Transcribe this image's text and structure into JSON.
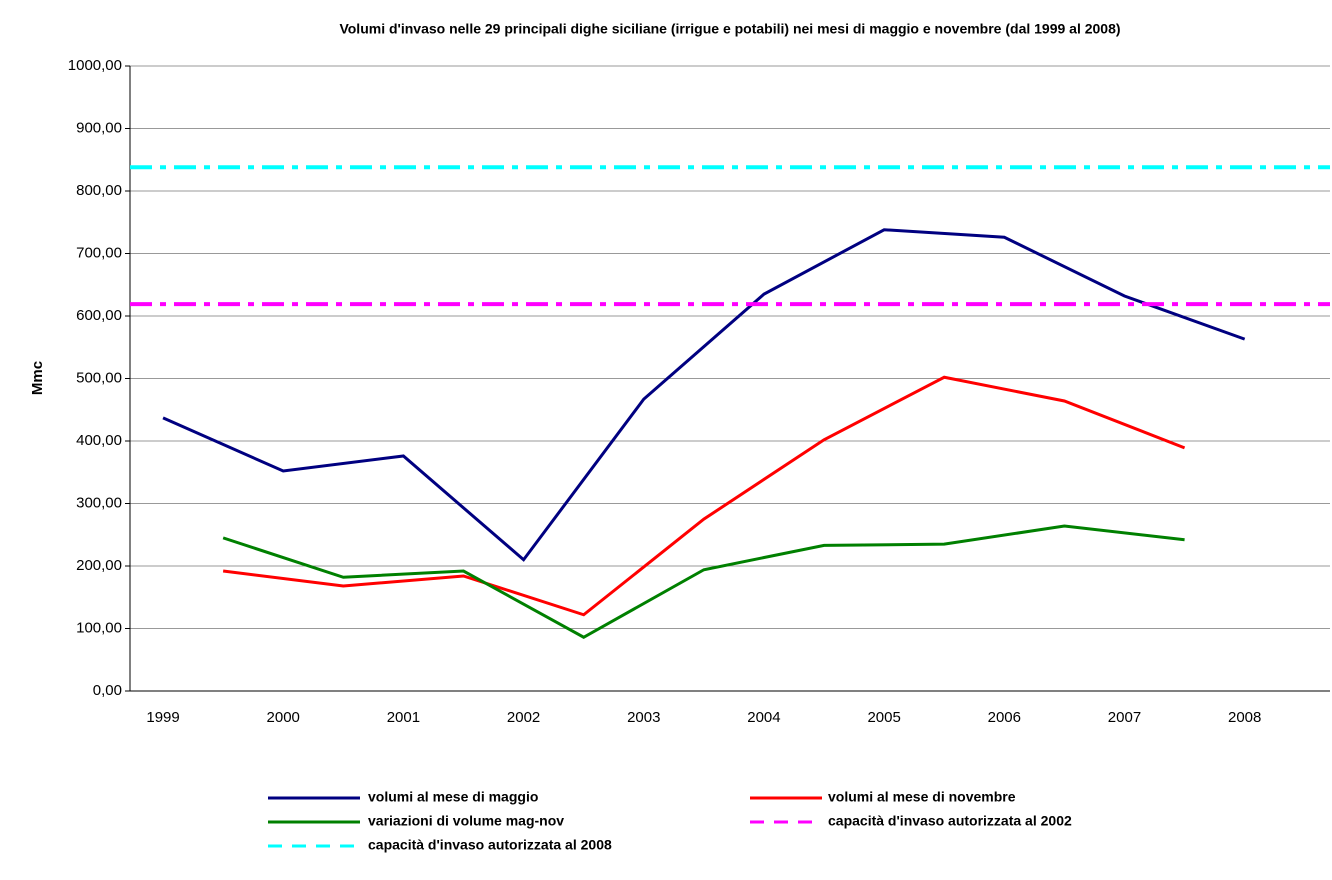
{
  "chart_data": {
    "type": "line",
    "title": "Volumi d'invaso nelle 29 principali dighe siciliane (irrigue e potabili) nei mesi di maggio e novembre (dal 1999 al 2008)",
    "y_label": "Mmc",
    "xlim": [
      1998.725,
      2008.71
    ],
    "xticks": [
      1999,
      2000,
      2001,
      2002,
      2003,
      2004,
      2005,
      2006,
      2007,
      2008
    ],
    "ylim": [
      0,
      1000
    ],
    "yticks": [
      {
        "value": 0,
        "label": "0,00"
      },
      {
        "value": 100,
        "label": "100,00"
      },
      {
        "value": 200,
        "label": "200,00"
      },
      {
        "value": 300,
        "label": "300,00"
      },
      {
        "value": 400,
        "label": "400,00"
      },
      {
        "value": 500,
        "label": "500,00"
      },
      {
        "value": 600,
        "label": "600,00"
      },
      {
        "value": 700,
        "label": "700,00"
      },
      {
        "value": 800,
        "label": "800,00"
      },
      {
        "value": 900,
        "label": "900,00"
      },
      {
        "value": 1000,
        "label": "1000,00"
      }
    ],
    "grid": true,
    "series": [
      {
        "name": "volumi al mese di maggio",
        "color": "#000080",
        "x": [
          1999,
          2000,
          2001,
          2002,
          2003,
          2004,
          2005,
          2006,
          2007,
          2008
        ],
        "values": [
          437,
          352,
          376,
          210,
          467,
          635,
          738,
          726,
          632,
          563
        ]
      },
      {
        "name": "volumi al mese di novembre",
        "color": "#ff0000",
        "x": [
          1999.5,
          2000.5,
          2001.5,
          2002.5,
          2003.5,
          2004.5,
          2005.5,
          2006.5,
          2007.5
        ],
        "values": [
          192,
          168,
          184,
          122,
          275,
          402,
          502,
          464,
          389
        ]
      },
      {
        "name": "variazioni di volume mag-nov",
        "color": "#008000",
        "x": [
          1999.5,
          2000.5,
          2001.5,
          2002.5,
          2003.5,
          2004.5,
          2005.5,
          2006.5,
          2007.5
        ],
        "values": [
          245,
          182,
          192,
          86,
          194,
          233,
          235,
          264,
          242
        ]
      },
      {
        "name": "capacità d'invaso autorizzata al 2002",
        "color": "#ff00ff",
        "dashed": true,
        "value": 619
      },
      {
        "name": "capacità d'invaso autorizzata al 2008",
        "color": "#00ffff",
        "dashed": true,
        "value": 838
      }
    ]
  }
}
